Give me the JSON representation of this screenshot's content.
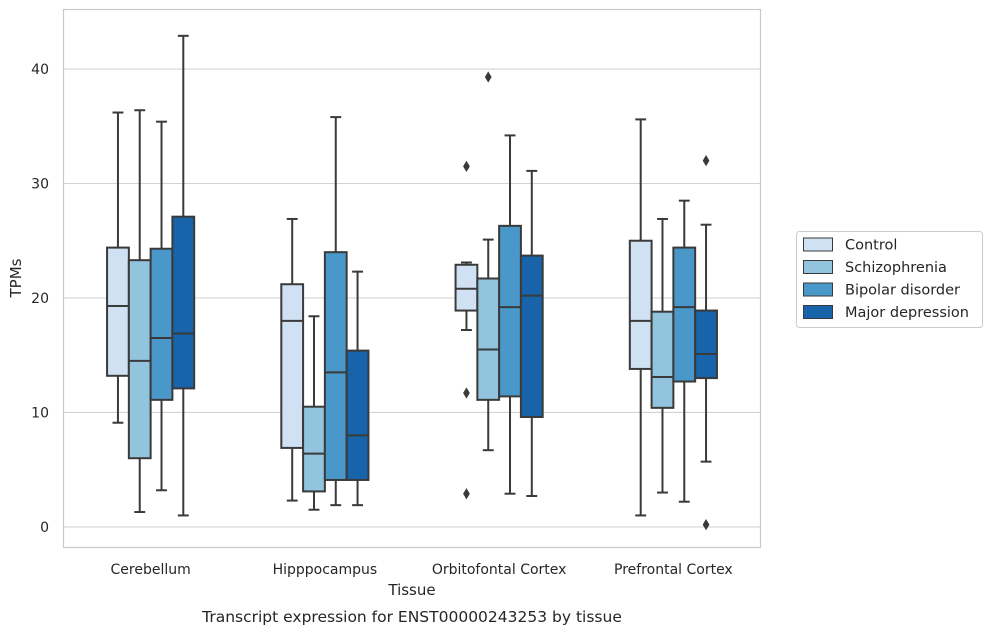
{
  "caption": "Transcript expression for ENST00000243253 by tissue",
  "chart_data": {
    "type": "boxplot",
    "xlabel": "Tissue",
    "ylabel": "TPMs",
    "ylim": [
      -1.8,
      45.2
    ],
    "yticks": [
      0,
      10,
      20,
      30,
      40
    ],
    "grid": "horizontal",
    "legend_position": "right",
    "categories": [
      "Cerebellum",
      "Hipppocampus",
      "Orbitofontal Cortex",
      "Prefrontal Cortex"
    ],
    "series": [
      {
        "name": "Control",
        "color": "#cfe1f2",
        "boxes": [
          {
            "whisker_low": 9.1,
            "q1": 13.2,
            "median": 19.3,
            "q3": 24.4,
            "whisker_high": 36.2,
            "outliers": []
          },
          {
            "whisker_low": 2.3,
            "q1": 6.9,
            "median": 18.0,
            "q3": 21.2,
            "whisker_high": 26.9,
            "outliers": []
          },
          {
            "whisker_low": 17.2,
            "q1": 18.9,
            "median": 20.8,
            "q3": 22.9,
            "whisker_high": 23.1,
            "outliers": [
              31.5,
              11.7,
              2.9
            ]
          },
          {
            "whisker_low": 1.0,
            "q1": 13.8,
            "median": 18.0,
            "q3": 25.0,
            "whisker_high": 35.6,
            "outliers": []
          }
        ]
      },
      {
        "name": "Schizophrenia",
        "color": "#93c4de",
        "boxes": [
          {
            "whisker_low": 1.3,
            "q1": 6.0,
            "median": 14.5,
            "q3": 23.3,
            "whisker_high": 36.4,
            "outliers": []
          },
          {
            "whisker_low": 1.5,
            "q1": 3.1,
            "median": 6.4,
            "q3": 10.5,
            "whisker_high": 18.4,
            "outliers": []
          },
          {
            "whisker_low": 6.7,
            "q1": 11.1,
            "median": 15.5,
            "q3": 21.7,
            "whisker_high": 25.1,
            "outliers": [
              39.3
            ]
          },
          {
            "whisker_low": 3.0,
            "q1": 10.4,
            "median": 13.1,
            "q3": 18.8,
            "whisker_high": 26.9,
            "outliers": []
          }
        ]
      },
      {
        "name": "Bipolar disorder",
        "color": "#4a98c9",
        "boxes": [
          {
            "whisker_low": 3.2,
            "q1": 11.1,
            "median": 16.5,
            "q3": 24.3,
            "whisker_high": 35.4,
            "outliers": []
          },
          {
            "whisker_low": 1.9,
            "q1": 4.1,
            "median": 13.5,
            "q3": 24.0,
            "whisker_high": 35.8,
            "outliers": []
          },
          {
            "whisker_low": 2.9,
            "q1": 11.4,
            "median": 19.2,
            "q3": 26.3,
            "whisker_high": 34.2,
            "outliers": []
          },
          {
            "whisker_low": 2.2,
            "q1": 12.7,
            "median": 19.2,
            "q3": 24.4,
            "whisker_high": 28.5,
            "outliers": []
          }
        ]
      },
      {
        "name": "Major depression",
        "color": "#1764ab",
        "boxes": [
          {
            "whisker_low": 1.0,
            "q1": 12.1,
            "median": 16.9,
            "q3": 27.1,
            "whisker_high": 42.9,
            "outliers": []
          },
          {
            "whisker_low": 1.9,
            "q1": 4.1,
            "median": 8.0,
            "q3": 15.4,
            "whisker_high": 22.3,
            "outliers": []
          },
          {
            "whisker_low": 2.7,
            "q1": 9.6,
            "median": 20.2,
            "q3": 23.7,
            "whisker_high": 31.1,
            "outliers": []
          },
          {
            "whisker_low": 5.7,
            "q1": 13.0,
            "median": 15.1,
            "q3": 18.9,
            "whisker_high": 26.4,
            "outliers": [
              32.0,
              0.2
            ]
          }
        ]
      }
    ],
    "colors": {
      "grid": "#d3d3d3",
      "frame": "#c8c8c8",
      "box_edge": "#3a3a3a"
    }
  }
}
